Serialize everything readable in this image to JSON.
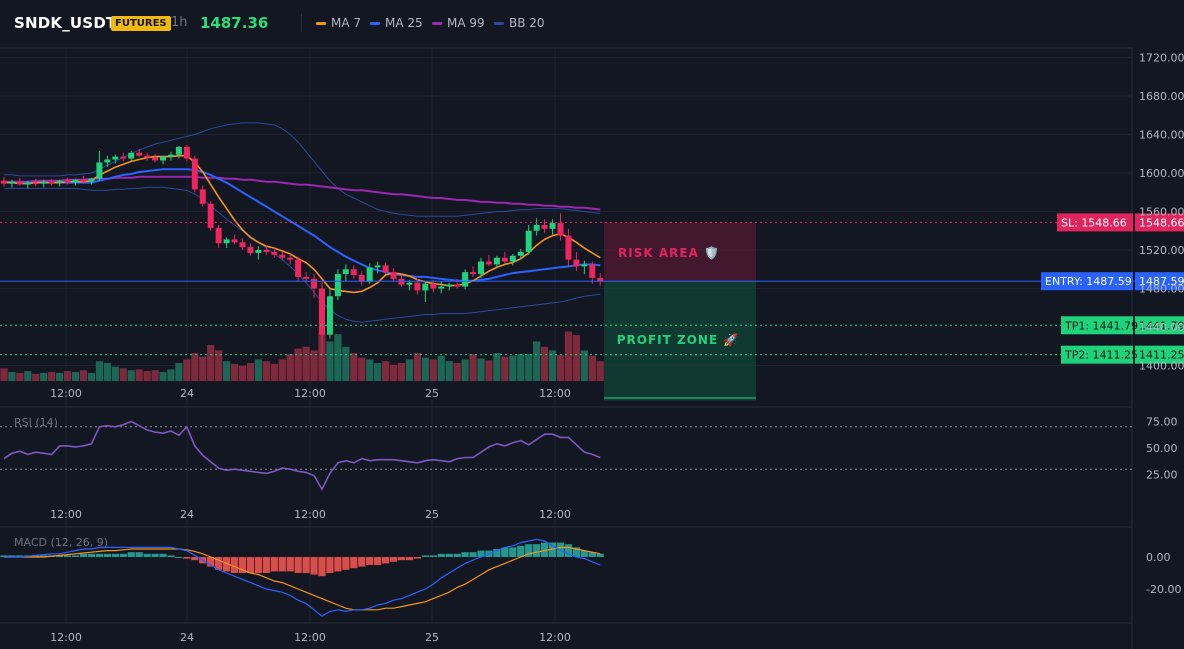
{
  "header": {
    "symbol": "SNDK_USDT",
    "badge": "FUTURES",
    "timeframe": "1h",
    "price": "1487.36"
  },
  "legend": [
    {
      "label": "MA 7",
      "color": "#f7931a"
    },
    {
      "label": "MA 25",
      "color": "#2962ff"
    },
    {
      "label": "MA 99",
      "color": "#9c27b0"
    },
    {
      "label": "BB 20",
      "color": "#2b4a9c"
    }
  ],
  "levels": {
    "sl_label": "SL: 1548.66",
    "sl_value": "1548.66",
    "entry_label": "ENTRY: 1487.59",
    "entry_value": "1487.59",
    "tp1_label": "TP1: 1441.79",
    "tp1_value": "1441.79",
    "tp2_label": "TP2: 1411.25",
    "tp2_value": "1411.25"
  },
  "zones": {
    "risk": "RISK AREA 🛡️",
    "profit": "PROFIT ZONE 🚀"
  },
  "panes": {
    "rsi_title": "RSI (14)",
    "macd_title": "MACD (12, 26, 9)"
  },
  "chart_data": {
    "type": "candlestick",
    "price_axis_ticks": [
      "1720.00",
      "1680.00",
      "1640.00",
      "1600.00",
      "1560.00",
      "1520.00",
      "1480.00",
      "1440.00",
      "1400.00"
    ],
    "time_axis_ticks": [
      "12:00",
      "24",
      "12:00",
      "25",
      "12:00"
    ],
    "rsi_axis_ticks": [
      "75.00",
      "50.00",
      "25.00"
    ],
    "macd_axis_ticks": [
      "0.00",
      "-20.00"
    ],
    "ohlc": [
      [
        1592,
        1596,
        1586,
        1589
      ],
      [
        1589,
        1593,
        1585,
        1591
      ],
      [
        1591,
        1595,
        1587,
        1588
      ],
      [
        1588,
        1592,
        1584,
        1590
      ],
      [
        1590,
        1594,
        1586,
        1589
      ],
      [
        1589,
        1593,
        1585,
        1591
      ],
      [
        1591,
        1594,
        1587,
        1590
      ],
      [
        1590,
        1593,
        1586,
        1592
      ],
      [
        1592,
        1595,
        1588,
        1590
      ],
      [
        1590,
        1594,
        1587,
        1593
      ],
      [
        1593,
        1597,
        1589,
        1591
      ],
      [
        1591,
        1595,
        1588,
        1594
      ],
      [
        1594,
        1623,
        1592,
        1611
      ],
      [
        1611,
        1618,
        1606,
        1614
      ],
      [
        1614,
        1619,
        1610,
        1617
      ],
      [
        1617,
        1621,
        1612,
        1615
      ],
      [
        1615,
        1623,
        1613,
        1621
      ],
      [
        1621,
        1625,
        1617,
        1618
      ],
      [
        1618,
        1621,
        1613,
        1616
      ],
      [
        1616,
        1620,
        1611,
        1613
      ],
      [
        1613,
        1618,
        1609,
        1617
      ],
      [
        1617,
        1622,
        1613,
        1619
      ],
      [
        1619,
        1628,
        1615,
        1627
      ],
      [
        1627,
        1629,
        1612,
        1615
      ],
      [
        1615,
        1618,
        1580,
        1583
      ],
      [
        1583,
        1587,
        1565,
        1568
      ],
      [
        1568,
        1571,
        1540,
        1543
      ],
      [
        1543,
        1546,
        1522,
        1527
      ],
      [
        1527,
        1533,
        1522,
        1531
      ],
      [
        1531,
        1536,
        1526,
        1528
      ],
      [
        1528,
        1532,
        1520,
        1523
      ],
      [
        1523,
        1527,
        1514,
        1517
      ],
      [
        1517,
        1524,
        1510,
        1520
      ],
      [
        1520,
        1525,
        1515,
        1518
      ],
      [
        1518,
        1522,
        1512,
        1515
      ],
      [
        1515,
        1519,
        1510,
        1512
      ],
      [
        1512,
        1516,
        1505,
        1510
      ],
      [
        1510,
        1513,
        1488,
        1492
      ],
      [
        1492,
        1497,
        1486,
        1490
      ],
      [
        1490,
        1495,
        1470,
        1480
      ],
      [
        1480,
        1487,
        1410,
        1432
      ],
      [
        1432,
        1480,
        1428,
        1472
      ],
      [
        1472,
        1500,
        1468,
        1495
      ],
      [
        1495,
        1505,
        1488,
        1500
      ],
      [
        1500,
        1504,
        1490,
        1494
      ],
      [
        1494,
        1498,
        1483,
        1487
      ],
      [
        1487,
        1506,
        1485,
        1502
      ],
      [
        1502,
        1508,
        1496,
        1504
      ],
      [
        1504,
        1507,
        1495,
        1497
      ],
      [
        1497,
        1501,
        1487,
        1490
      ],
      [
        1490,
        1494,
        1482,
        1484
      ],
      [
        1484,
        1489,
        1478,
        1486
      ],
      [
        1486,
        1490,
        1474,
        1478
      ],
      [
        1478,
        1488,
        1466,
        1485
      ],
      [
        1485,
        1489,
        1476,
        1480
      ],
      [
        1480,
        1487,
        1475,
        1482
      ],
      [
        1482,
        1486,
        1478,
        1484
      ],
      [
        1484,
        1490,
        1480,
        1482
      ],
      [
        1482,
        1500,
        1479,
        1497
      ],
      [
        1497,
        1503,
        1492,
        1495
      ],
      [
        1495,
        1512,
        1491,
        1508
      ],
      [
        1508,
        1515,
        1503,
        1505
      ],
      [
        1505,
        1514,
        1501,
        1512
      ],
      [
        1512,
        1518,
        1506,
        1508
      ],
      [
        1508,
        1516,
        1504,
        1514
      ],
      [
        1514,
        1521,
        1510,
        1518
      ],
      [
        1518,
        1546,
        1515,
        1540
      ],
      [
        1540,
        1553,
        1535,
        1546
      ],
      [
        1546,
        1552,
        1538,
        1542
      ],
      [
        1542,
        1552,
        1536,
        1548
      ],
      [
        1548,
        1558,
        1530,
        1535
      ],
      [
        1535,
        1542,
        1503,
        1510
      ],
      [
        1510,
        1518,
        1498,
        1503
      ],
      [
        1503,
        1509,
        1495,
        1505
      ],
      [
        1505,
        1508,
        1485,
        1491
      ],
      [
        1491,
        1496,
        1483,
        1487
      ]
    ],
    "volume": [
      14,
      10,
      9,
      11,
      8,
      9,
      10,
      9,
      11,
      10,
      12,
      9,
      22,
      20,
      16,
      14,
      12,
      13,
      11,
      12,
      10,
      13,
      20,
      24,
      31,
      27,
      40,
      34,
      22,
      19,
      17,
      20,
      24,
      22,
      19,
      24,
      30,
      36,
      38,
      34,
      54,
      44,
      52,
      38,
      31,
      26,
      24,
      20,
      22,
      18,
      20,
      24,
      31,
      26,
      24,
      28,
      22,
      20,
      24,
      30,
      25,
      23,
      31,
      27,
      28,
      30,
      30,
      44,
      38,
      34,
      29,
      55,
      51,
      34,
      28,
      22
    ],
    "ma7": [
      1590,
      1590,
      1589,
      1589,
      1590,
      1590,
      1590,
      1590,
      1591,
      1591,
      1591,
      1592,
      1598,
      1602,
      1606,
      1609,
      1612,
      1614,
      1616,
      1617,
      1617,
      1617,
      1618,
      1618,
      1611,
      1601,
      1588,
      1575,
      1563,
      1551,
      1541,
      1533,
      1528,
      1524,
      1522,
      1519,
      1516,
      1511,
      1507,
      1500,
      1490,
      1480,
      1478,
      1477,
      1476,
      1477,
      1481,
      1486,
      1494,
      1496,
      1495,
      1493,
      1489,
      1487,
      1485,
      1484,
      1483,
      1483,
      1485,
      1488,
      1493,
      1498,
      1502,
      1505,
      1507,
      1511,
      1517,
      1525,
      1531,
      1535,
      1537,
      1533,
      1528,
      1522,
      1517,
      1512
    ],
    "ma25": [
      1590,
      1590,
      1590,
      1590,
      1590,
      1590,
      1590,
      1590,
      1590,
      1590,
      1590,
      1590,
      1592,
      1594,
      1596,
      1598,
      1599,
      1601,
      1602,
      1603,
      1604,
      1604,
      1604,
      1604,
      1603,
      1601,
      1598,
      1594,
      1590,
      1585,
      1580,
      1575,
      1570,
      1565,
      1560,
      1555,
      1550,
      1545,
      1540,
      1535,
      1529,
      1523,
      1518,
      1513,
      1509,
      1505,
      1501,
      1499,
      1497,
      1495,
      1494,
      1493,
      1492,
      1492,
      1491,
      1490,
      1489,
      1488,
      1488,
      1488,
      1489,
      1490,
      1492,
      1494,
      1496,
      1497,
      1498,
      1499,
      1500,
      1501,
      1502,
      1503,
      1504,
      1505,
      1505,
      1504
    ],
    "ma99": [
      1591,
      1591,
      1591,
      1591,
      1592,
      1592,
      1592,
      1592,
      1593,
      1593,
      1593,
      1594,
      1594,
      1594,
      1595,
      1595,
      1595,
      1596,
      1596,
      1596,
      1596,
      1596,
      1596,
      1596,
      1596,
      1595,
      1595,
      1595,
      1594,
      1594,
      1593,
      1593,
      1592,
      1591,
      1591,
      1590,
      1589,
      1588,
      1588,
      1587,
      1586,
      1585,
      1584,
      1583,
      1582,
      1582,
      1581,
      1580,
      1579,
      1578,
      1578,
      1577,
      1576,
      1575,
      1574,
      1574,
      1573,
      1572,
      1572,
      1571,
      1570,
      1570,
      1569,
      1569,
      1568,
      1568,
      1567,
      1567,
      1566,
      1566,
      1565,
      1565,
      1564,
      1564,
      1563,
      1562
    ],
    "bb_upper": [
      1598,
      1598,
      1597,
      1597,
      1597,
      1597,
      1597,
      1597,
      1598,
      1598,
      1599,
      1600,
      1604,
      1608,
      1612,
      1616,
      1620,
      1624,
      1627,
      1630,
      1632,
      1634,
      1636,
      1638,
      1640,
      1643,
      1646,
      1648,
      1650,
      1651,
      1652,
      1652,
      1652,
      1651,
      1650,
      1646,
      1640,
      1632,
      1622,
      1612,
      1602,
      1592,
      1584,
      1578,
      1574,
      1570,
      1566,
      1562,
      1560,
      1558,
      1557,
      1556,
      1555,
      1555,
      1555,
      1555,
      1555,
      1555,
      1556,
      1557,
      1558,
      1559,
      1560,
      1560,
      1561,
      1562,
      1562,
      1563,
      1563,
      1563,
      1563,
      1562,
      1561,
      1560,
      1559,
      1558
    ],
    "bb_lower": [
      1584,
      1584,
      1584,
      1584,
      1584,
      1584,
      1584,
      1584,
      1584,
      1584,
      1583,
      1582,
      1582,
      1582,
      1583,
      1583,
      1584,
      1584,
      1585,
      1585,
      1585,
      1584,
      1583,
      1582,
      1578,
      1573,
      1566,
      1559,
      1552,
      1546,
      1540,
      1534,
      1528,
      1522,
      1516,
      1510,
      1503,
      1495,
      1486,
      1476,
      1466,
      1458,
      1452,
      1448,
      1446,
      1445,
      1446,
      1447,
      1448,
      1449,
      1450,
      1451,
      1452,
      1453,
      1453,
      1454,
      1454,
      1454,
      1454,
      1455,
      1456,
      1457,
      1458,
      1459,
      1460,
      1461,
      1462,
      1463,
      1464,
      1465,
      1466,
      1468,
      1470,
      1472,
      1473,
      1474
    ],
    "rsi": [
      40,
      45,
      47,
      44,
      46,
      45,
      44,
      52,
      52,
      51,
      52,
      54,
      70,
      71,
      70,
      72,
      75,
      71,
      67,
      65,
      64,
      66,
      62,
      70,
      52,
      43,
      37,
      31,
      29,
      30,
      29,
      28,
      27,
      26,
      28,
      31,
      30,
      28,
      27,
      24,
      11,
      26,
      36,
      38,
      36,
      40,
      38,
      39,
      39,
      39,
      38,
      37,
      36,
      38,
      39,
      38,
      37,
      40,
      41,
      41,
      46,
      51,
      54,
      52,
      55,
      57,
      53,
      58,
      63,
      63,
      60,
      60,
      53,
      46,
      44,
      41
    ],
    "macd_line": [
      0,
      0,
      0,
      0.5,
      1,
      1.5,
      2,
      2,
      3,
      4,
      5,
      5,
      6,
      6,
      6,
      6,
      6,
      6,
      6,
      6,
      6,
      6,
      5,
      4,
      1,
      -2,
      -5,
      -8,
      -10,
      -12,
      -14,
      -16,
      -18,
      -20,
      -21,
      -22,
      -24,
      -27,
      -29,
      -33,
      -37,
      -34,
      -33,
      -34,
      -33,
      -33,
      -32,
      -30,
      -29,
      -27,
      -26,
      -24,
      -22,
      -20,
      -17,
      -13,
      -10,
      -7,
      -4,
      -2,
      0,
      2,
      4,
      6,
      7,
      9,
      10,
      11,
      10,
      7,
      4,
      2,
      0,
      -1,
      -3,
      -5
    ],
    "macd_signal": [
      0,
      0,
      0,
      0,
      0,
      0,
      0.5,
      1,
      1.5,
      2,
      2.5,
      3,
      3.5,
      4,
      4,
      4.5,
      5,
      5,
      5,
      5,
      5,
      5,
      5,
      4.5,
      3.5,
      2,
      0,
      -2,
      -4,
      -6,
      -8,
      -10,
      -11,
      -13,
      -15,
      -16,
      -18,
      -20,
      -22,
      -24,
      -26,
      -28,
      -30,
      -32,
      -33,
      -33,
      -33,
      -33,
      -32,
      -32,
      -31,
      -30,
      -29,
      -28,
      -26,
      -24,
      -22,
      -19,
      -17,
      -14,
      -11,
      -8,
      -6,
      -4,
      -2,
      0,
      2,
      3,
      4,
      5,
      6,
      6,
      5,
      4,
      3,
      2
    ],
    "macd_hist": [
      1,
      1,
      1,
      1,
      1,
      1,
      1,
      1,
      1,
      1,
      2,
      2,
      2,
      2,
      2,
      2,
      3,
      3,
      2,
      2,
      2,
      1,
      0,
      -1,
      -2,
      -4,
      -6,
      -8,
      -9,
      -10,
      -10,
      -10,
      -10,
      -10,
      -9,
      -9,
      -9,
      -10,
      -10,
      -11,
      -12,
      -10,
      -9,
      -8,
      -7,
      -6,
      -5,
      -5,
      -4,
      -3,
      -2,
      -2,
      -1,
      1,
      1,
      2,
      2,
      2,
      3,
      3,
      4,
      4,
      5,
      6,
      6,
      7,
      8,
      8,
      9,
      9,
      9,
      8,
      6,
      4,
      3,
      2
    ]
  }
}
